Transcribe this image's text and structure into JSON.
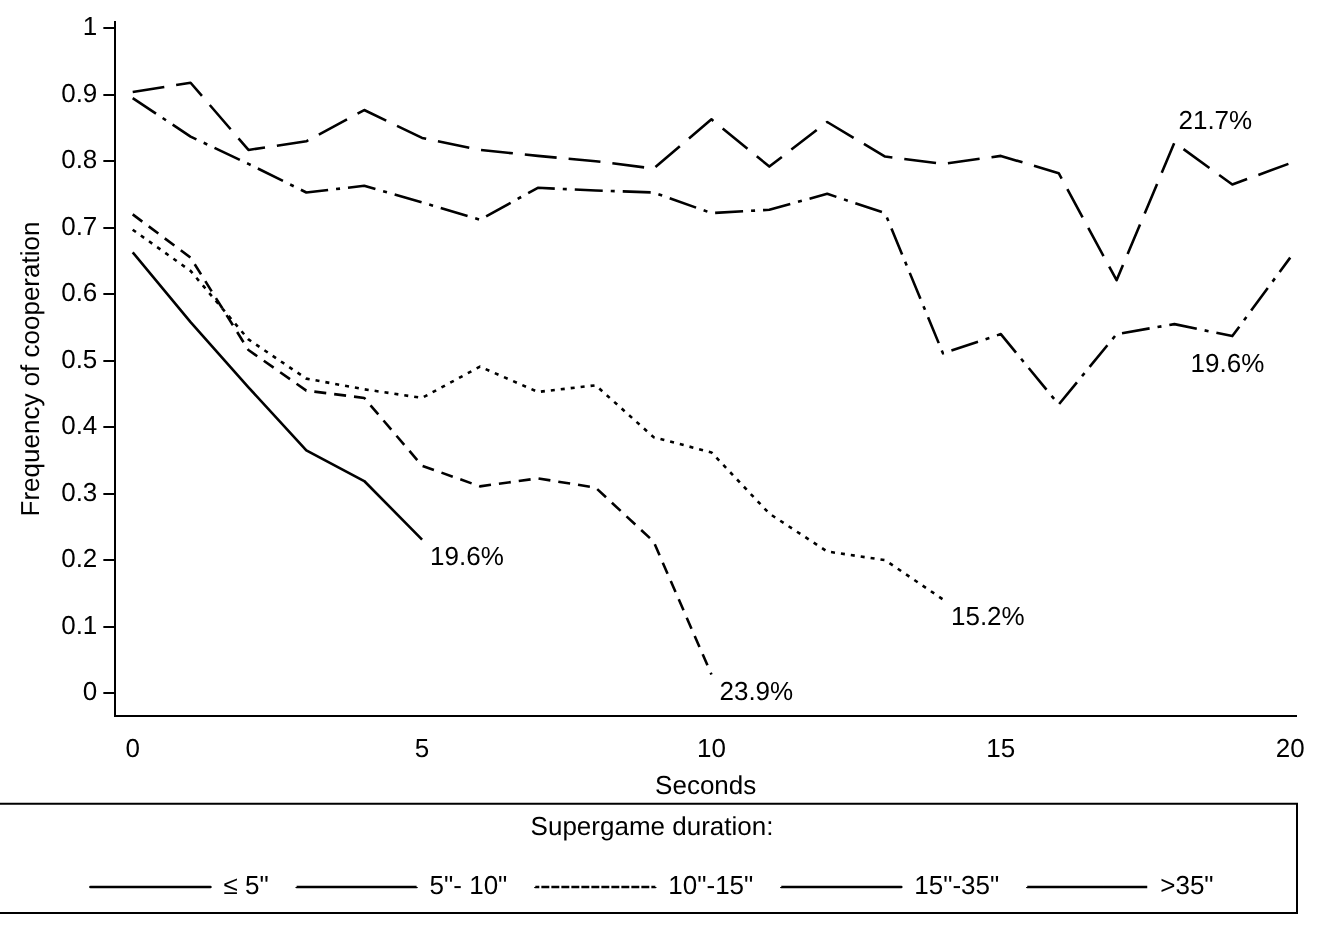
{
  "chart_data": {
    "type": "line",
    "xlabel": "Seconds",
    "ylabel": "Frequency of cooperation",
    "legend_title": "Supergame duration:",
    "legend": "bottom",
    "grid": false,
    "marker": "none",
    "xlim": [
      -0.3,
      20.1
    ],
    "xticks": [
      0,
      5,
      10,
      15,
      20
    ],
    "ylim": [
      -0.035,
      1.01
    ],
    "yticks": [
      0,
      0.1,
      0.2,
      0.3,
      0.4,
      0.5,
      0.6,
      0.7,
      0.8,
      0.9,
      1
    ],
    "x": [
      0,
      1,
      2,
      3,
      4,
      5,
      6,
      7,
      8,
      9,
      10,
      11,
      12,
      13,
      14,
      15,
      16,
      17,
      18,
      19,
      20
    ],
    "series": [
      {
        "name": "≤ 5\"",
        "color": "#000000",
        "line_style": "solid",
        "values": [
          0.663,
          0.558,
          0.46,
          0.365,
          0.319,
          0.231,
          null,
          null,
          null,
          null,
          null,
          null,
          null,
          null,
          null,
          null,
          null,
          null,
          null,
          null,
          null
        ]
      },
      {
        "name": "5\"- 10\"",
        "color": "#000000",
        "line_style": "dashed",
        "values": [
          0.72,
          0.655,
          0.516,
          0.455,
          0.444,
          0.342,
          0.311,
          0.323,
          0.309,
          0.228,
          0.028,
          null,
          null,
          null,
          null,
          null,
          null,
          null,
          null,
          null,
          null
        ]
      },
      {
        "name": "10\"-15\"",
        "color": "#000000",
        "line_style": "dotted",
        "values": [
          0.697,
          0.635,
          0.532,
          0.473,
          0.457,
          0.444,
          0.491,
          0.453,
          0.463,
          0.385,
          0.362,
          0.27,
          0.213,
          0.2,
          0.141,
          null,
          null,
          null,
          null,
          null,
          null
        ]
      },
      {
        "name": "15\"-35\"",
        "color": "#000000",
        "line_style": "dashdot",
        "values": [
          0.895,
          0.837,
          0.796,
          0.753,
          0.763,
          0.738,
          0.712,
          0.76,
          0.756,
          0.753,
          0.722,
          0.727,
          0.751,
          0.722,
          0.511,
          0.54,
          0.434,
          0.54,
          0.555,
          0.537,
          0.655
        ]
      },
      {
        "name": ">35\"",
        "color": "#000000",
        "line_style": "longdash",
        "values": [
          0.904,
          0.918,
          0.817,
          0.83,
          0.877,
          0.835,
          0.817,
          0.808,
          0.8,
          0.789,
          0.863,
          0.792,
          0.859,
          0.807,
          0.796,
          0.808,
          0.782,
          0.621,
          0.828,
          0.765,
          0.797
        ]
      }
    ],
    "annotations": [
      {
        "text": "19.6%",
        "x": 5,
        "y": 0.231
      },
      {
        "text": "23.9%",
        "x": 10,
        "y": 0.028
      },
      {
        "text": "15.2%",
        "x": 14,
        "y": 0.141
      },
      {
        "text": "21.7%",
        "x": 18,
        "y": 0.828
      },
      {
        "text": "19.6%",
        "x": 19,
        "y": 0.537
      }
    ]
  }
}
